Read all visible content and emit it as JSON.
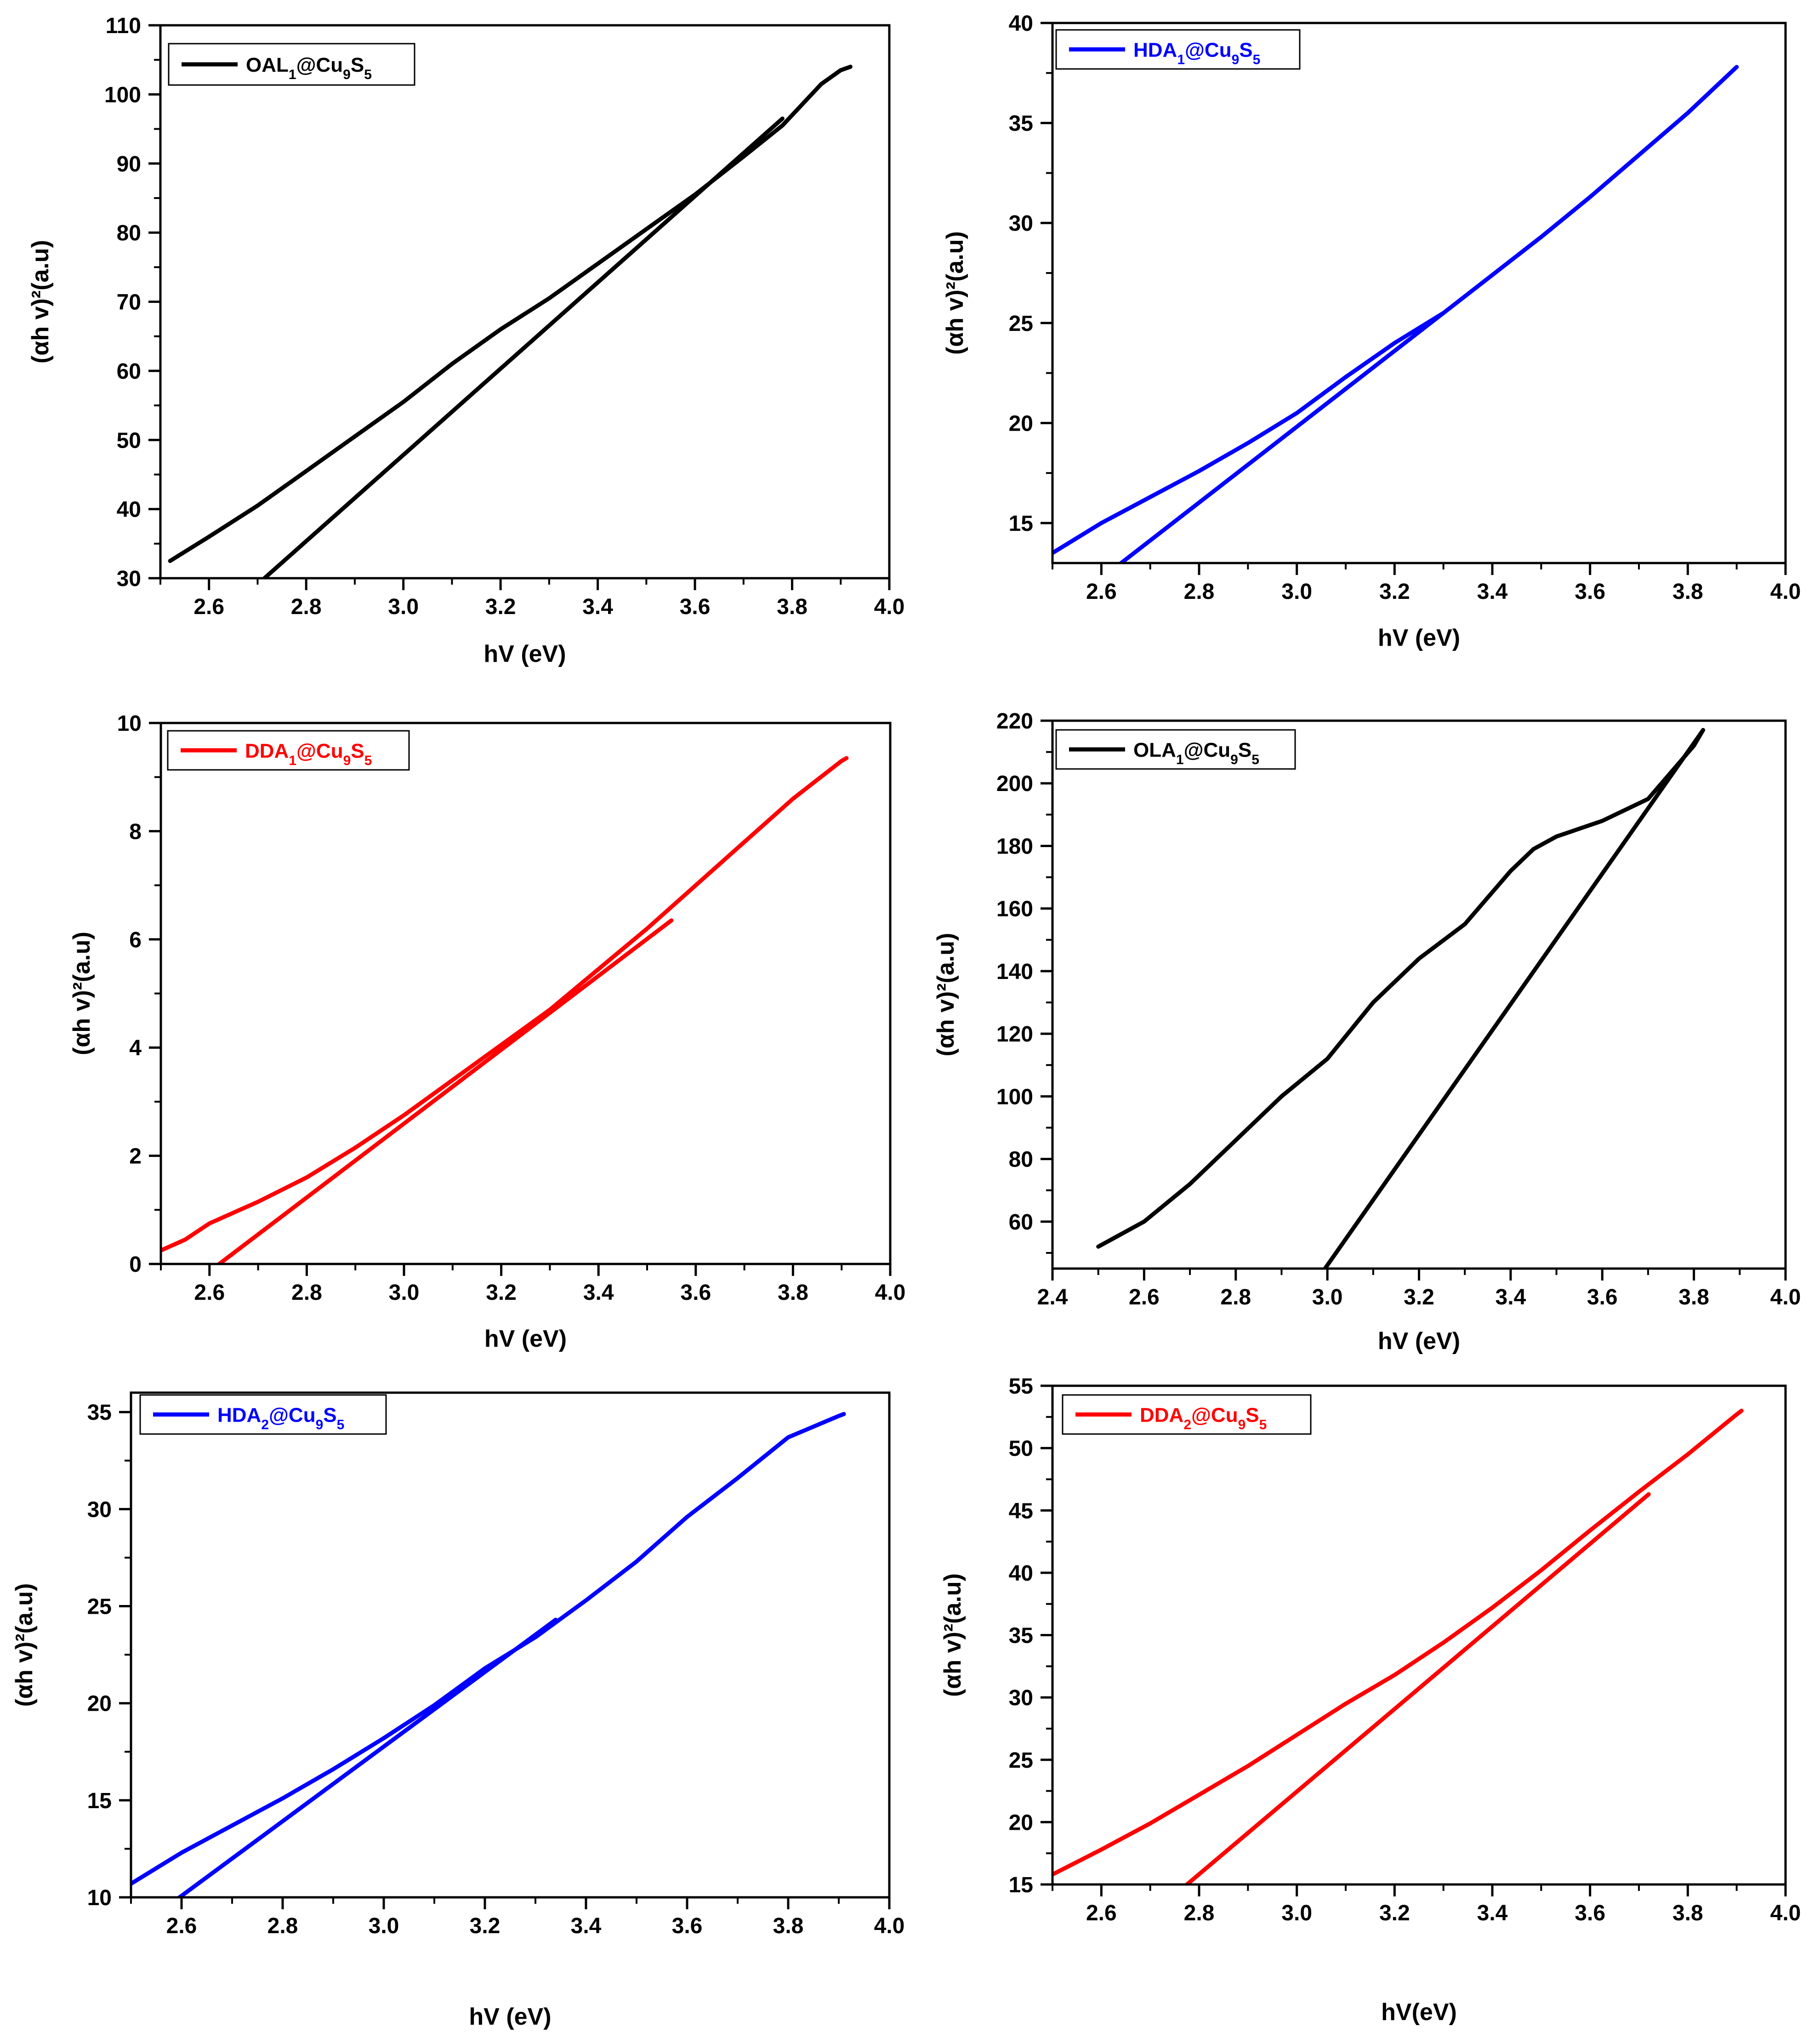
{
  "figure": {
    "panel_count": 6
  },
  "chart_data": [
    {
      "type": "line",
      "title": "",
      "xlabel": "hV (eV)",
      "ylabel": "(αh v)²(a.u)",
      "xlim": [
        2.5,
        4.0
      ],
      "ylim": [
        30,
        110
      ],
      "xticks": [
        2.6,
        2.8,
        3.0,
        3.2,
        3.4,
        3.6,
        3.8,
        4.0
      ],
      "yticks": [
        30,
        40,
        50,
        60,
        70,
        80,
        90,
        100,
        110
      ],
      "ytick_decimals": 0,
      "legend": {
        "position": "top-left",
        "parts": [
          {
            "t": "OAL",
            "s": null
          },
          {
            "t": "1",
            "s": "sub"
          },
          {
            "t": "@Cu",
            "s": null
          },
          {
            "t": "9",
            "s": "sub"
          },
          {
            "t": "S",
            "s": null
          },
          {
            "t": "5",
            "s": "sub"
          }
        ],
        "color": "#000000"
      },
      "series": [
        {
          "name": "OAL1@Cu9S5 data",
          "color": "#000000",
          "x": [
            2.52,
            2.6,
            2.7,
            2.8,
            2.9,
            3.0,
            3.1,
            3.2,
            3.3,
            3.4,
            3.5,
            3.6,
            3.7,
            3.78,
            3.82,
            3.86,
            3.9,
            3.92
          ],
          "y": [
            32.5,
            36,
            40.5,
            45.5,
            50.5,
            55.5,
            61,
            66,
            70.5,
            75.5,
            80.5,
            85.5,
            91,
            95.5,
            98.5,
            101.5,
            103.5,
            104
          ]
        },
        {
          "name": "OAL1@Cu9S5 tangent",
          "color": "#000000",
          "x": [
            2.69,
            3.78
          ],
          "y": [
            28.5,
            96.5
          ]
        }
      ]
    },
    {
      "type": "line",
      "title": "",
      "xlabel": "hV (eV)",
      "ylabel": "(αh v)²(a.u)",
      "xlim": [
        2.5,
        4.0
      ],
      "ylim": [
        13,
        40
      ],
      "xticks": [
        2.6,
        2.8,
        3.0,
        3.2,
        3.4,
        3.6,
        3.8,
        4.0
      ],
      "yticks": [
        15,
        20,
        25,
        30,
        35,
        40
      ],
      "ytick_decimals": 0,
      "legend": {
        "position": "top-left",
        "parts": [
          {
            "t": "HDA",
            "s": null
          },
          {
            "t": "1",
            "s": "sub"
          },
          {
            "t": "@Cu",
            "s": null
          },
          {
            "t": "9",
            "s": "sub"
          },
          {
            "t": "S",
            "s": null
          },
          {
            "t": "5",
            "s": "sub"
          }
        ],
        "color": "#0000ff"
      },
      "series": [
        {
          "name": "HDA1@Cu9S5 data",
          "color": "#0000ff",
          "x": [
            2.5,
            2.6,
            2.7,
            2.8,
            2.9,
            3.0,
            3.1,
            3.2,
            3.3,
            3.4,
            3.5,
            3.6,
            3.7,
            3.8,
            3.9
          ],
          "y": [
            13.5,
            15,
            16.3,
            17.6,
            19,
            20.5,
            22.3,
            24,
            25.5,
            27.4,
            29.3,
            31.3,
            33.4,
            35.5,
            37.8
          ]
        },
        {
          "name": "HDA1@Cu9S5 tangent",
          "color": "#0000ff",
          "x": [
            2.63,
            3.3
          ],
          "y": [
            12.8,
            25.5
          ]
        }
      ]
    },
    {
      "type": "line",
      "title": "",
      "xlabel": "hV (eV)",
      "ylabel": "(αh v)²(a.u)",
      "xlim": [
        2.5,
        4.0
      ],
      "ylim": [
        0,
        10
      ],
      "xticks": [
        2.6,
        2.8,
        3.0,
        3.2,
        3.4,
        3.6,
        3.8,
        4.0
      ],
      "yticks": [
        0,
        2,
        4,
        6,
        8,
        10
      ],
      "ytick_decimals": 0,
      "legend": {
        "position": "top-left",
        "parts": [
          {
            "t": "DDA",
            "s": null
          },
          {
            "t": "1",
            "s": "sub"
          },
          {
            "t": "@Cu",
            "s": null
          },
          {
            "t": "9",
            "s": "sub"
          },
          {
            "t": "S",
            "s": null
          },
          {
            "t": "5",
            "s": "sub"
          }
        ],
        "color": "#ff0000"
      },
      "series": [
        {
          "name": "DDA1@Cu9S5 data",
          "color": "#ff0000",
          "x": [
            2.5,
            2.55,
            2.6,
            2.7,
            2.8,
            2.9,
            3.0,
            3.1,
            3.2,
            3.3,
            3.4,
            3.5,
            3.6,
            3.7,
            3.8,
            3.9,
            3.91
          ],
          "y": [
            0.25,
            0.45,
            0.75,
            1.15,
            1.6,
            2.15,
            2.75,
            3.4,
            4.05,
            4.7,
            5.45,
            6.2,
            7.0,
            7.8,
            8.6,
            9.3,
            9.35
          ]
        },
        {
          "name": "DDA1@Cu9S5 tangent",
          "color": "#ff0000",
          "x": [
            2.62,
            3.55
          ],
          "y": [
            0.0,
            6.35
          ]
        }
      ]
    },
    {
      "type": "line",
      "title": "",
      "xlabel": "hV (eV)",
      "ylabel": "(αh v)²(a.u)",
      "xlim": [
        2.4,
        4.0
      ],
      "ylim": [
        45,
        220
      ],
      "xticks": [
        2.4,
        2.6,
        2.8,
        3.0,
        3.2,
        3.4,
        3.6,
        3.8,
        4.0
      ],
      "yticks": [
        60,
        80,
        100,
        120,
        140,
        160,
        180,
        200,
        220
      ],
      "ytick_decimals": 0,
      "legend": {
        "position": "top-left",
        "parts": [
          {
            "t": "OLA",
            "s": null
          },
          {
            "t": "1",
            "s": "sub"
          },
          {
            "t": "@Cu",
            "s": null
          },
          {
            "t": "9",
            "s": "sub"
          },
          {
            "t": "S",
            "s": null
          },
          {
            "t": "5",
            "s": "sub"
          }
        ],
        "color": "#000000"
      },
      "series": [
        {
          "name": "OLA1@Cu9S5 data",
          "color": "#000000",
          "x": [
            2.5,
            2.6,
            2.7,
            2.8,
            2.9,
            3.0,
            3.1,
            3.2,
            3.3,
            3.4,
            3.45,
            3.5,
            3.6,
            3.7,
            3.8,
            3.82
          ],
          "y": [
            52,
            60,
            72,
            86,
            100,
            112,
            130,
            144,
            155,
            172,
            179,
            183,
            188,
            195,
            212,
            217
          ]
        },
        {
          "name": "OLA1@Cu9S5 tangent",
          "color": "#000000",
          "x": [
            2.99,
            3.82
          ],
          "y": [
            44,
            217
          ]
        }
      ]
    },
    {
      "type": "line",
      "title": "",
      "xlabel": "hV (eV)",
      "ylabel": "(αh v)²(a.u)",
      "xlim": [
        2.5,
        4.0
      ],
      "ylim": [
        10,
        36
      ],
      "xticks": [
        2.6,
        2.8,
        3.0,
        3.2,
        3.4,
        3.6,
        3.8,
        4.0
      ],
      "yticks": [
        10,
        15,
        20,
        25,
        30,
        35
      ],
      "ytick_decimals": 0,
      "legend": {
        "position": "top-left",
        "parts": [
          {
            "t": "HDA",
            "s": null
          },
          {
            "t": "2",
            "s": "sub"
          },
          {
            "t": "@Cu",
            "s": null
          },
          {
            "t": "9",
            "s": "sub"
          },
          {
            "t": "S",
            "s": null
          },
          {
            "t": "5",
            "s": "sub"
          }
        ],
        "color": "#0000ff"
      },
      "series": [
        {
          "name": "HDA2@Cu9S5 data",
          "color": "#0000ff",
          "x": [
            2.5,
            2.6,
            2.7,
            2.8,
            2.9,
            3.0,
            3.1,
            3.2,
            3.3,
            3.4,
            3.5,
            3.6,
            3.7,
            3.8,
            3.9,
            3.91
          ],
          "y": [
            10.7,
            12.3,
            13.7,
            15.1,
            16.6,
            18.2,
            19.9,
            21.8,
            23.4,
            25.3,
            27.3,
            29.6,
            31.6,
            33.7,
            34.8,
            34.9
          ]
        },
        {
          "name": "HDA2@Cu9S5 tangent",
          "color": "#0000ff",
          "x": [
            2.57,
            3.34
          ],
          "y": [
            9.5,
            24.3
          ]
        }
      ]
    },
    {
      "type": "line",
      "title": "",
      "xlabel": "hV(eV)",
      "ylabel": "(αh v)²(a.u)",
      "xlim": [
        2.5,
        4.0
      ],
      "ylim": [
        15,
        55
      ],
      "xticks": [
        2.6,
        2.8,
        3.0,
        3.2,
        3.4,
        3.6,
        3.8,
        4.0
      ],
      "yticks": [
        15,
        20,
        25,
        30,
        35,
        40,
        45,
        50,
        55
      ],
      "ytick_decimals": 0,
      "legend": {
        "position": "top-left",
        "parts": [
          {
            "t": "DDA",
            "s": null
          },
          {
            "t": "2",
            "s": "sub"
          },
          {
            "t": "@Cu",
            "s": null
          },
          {
            "t": "9",
            "s": "sub"
          },
          {
            "t": "S",
            "s": null
          },
          {
            "t": "5",
            "s": "sub"
          }
        ],
        "color": "#ff0000"
      },
      "series": [
        {
          "name": "DDA2@Cu9S5 data",
          "color": "#ff0000",
          "x": [
            2.5,
            2.6,
            2.7,
            2.8,
            2.9,
            3.0,
            3.1,
            3.2,
            3.3,
            3.4,
            3.5,
            3.6,
            3.7,
            3.8,
            3.9,
            3.91
          ],
          "y": [
            15.8,
            17.8,
            19.9,
            22.2,
            24.5,
            27.0,
            29.5,
            31.8,
            34.4,
            37.2,
            40.2,
            43.4,
            46.5,
            49.5,
            52.7,
            53.0
          ]
        },
        {
          "name": "DDA2@Cu9S5 tangent",
          "color": "#ff0000",
          "x": [
            2.76,
            3.72
          ],
          "y": [
            14.5,
            46.3
          ]
        }
      ]
    }
  ]
}
